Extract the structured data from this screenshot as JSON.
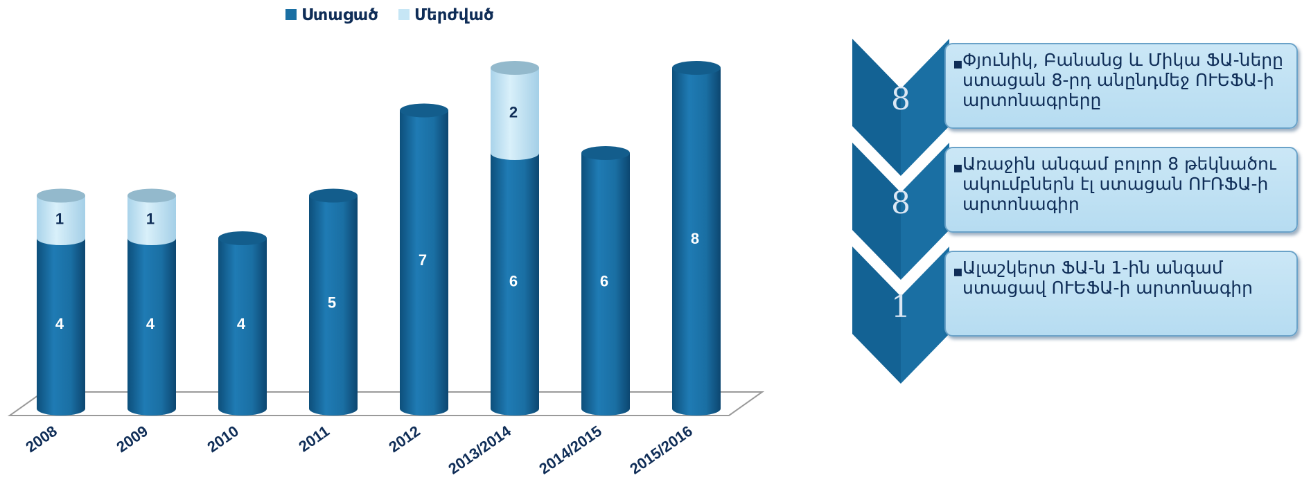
{
  "chart_data": {
    "type": "bar",
    "stacked": true,
    "style": "3d-cylinder",
    "categories": [
      "2008",
      "2009",
      "2010",
      "2011",
      "2012",
      "2013/2014",
      "2014/2015",
      "2015/2016"
    ],
    "series": [
      {
        "name": "Ստացած",
        "values": [
          4,
          4,
          4,
          5,
          7,
          6,
          6,
          8
        ]
      },
      {
        "name": "Մերժված",
        "values": [
          1,
          1,
          0,
          0,
          0,
          2,
          0,
          0
        ]
      }
    ],
    "legend": "top-center",
    "grid": false,
    "ylim": [
      0,
      8.5
    ]
  },
  "colors": {
    "received": "#1a6fa3",
    "rejected": "#c6e6f5",
    "label_dark": "#0f2d57",
    "label_light": "#ffffff",
    "chevron": "#1a6fa3"
  },
  "info_panel": {
    "items": [
      {
        "number": "8",
        "text": "Փյունիկ, Բանանց և Միկա ՖԱ-ները ստացան 8-րդ անընդմեջ ՈՒԵՖԱ-ի արտոնագրերը"
      },
      {
        "number": "8",
        "text": "Առաջին անգամ բոլոր 8 թեկնածու ակումբներն էլ ստացան ՈՒՌՖԱ-ի արտոնագիր"
      },
      {
        "number": "1",
        "text": "Ալաշկերտ  ՖԱ-ն 1-ին անգամ ստացավ ՈՒԵՖԱ-ի արտոնագիր"
      }
    ]
  }
}
